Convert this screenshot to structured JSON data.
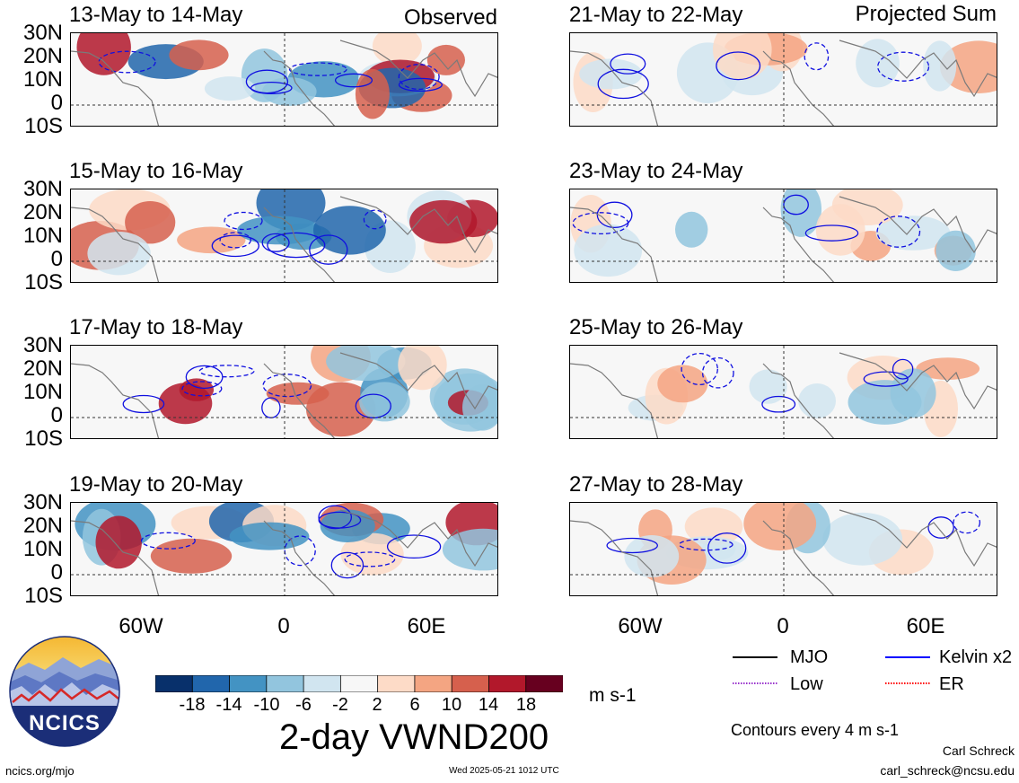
{
  "panels": {
    "observed_tag": "Observed",
    "projected_tag": "Projected Sum",
    "left_titles": [
      "13-May to 14-May",
      "15-May to 16-May",
      "17-May to 18-May",
      "19-May to 20-May"
    ],
    "right_titles": [
      "21-May to 22-May",
      "23-May to 24-May",
      "25-May to 26-May",
      "27-May to 28-May"
    ],
    "lat_labels": [
      "30N",
      "20N",
      "10N",
      "0",
      "10S"
    ],
    "lon_labels": [
      "60W",
      "0",
      "60E"
    ]
  },
  "colorbar": {
    "colors": [
      "#08306b",
      "#2166ac",
      "#4393c3",
      "#92c5de",
      "#d1e5f0",
      "#f7f7f7",
      "#fddbc7",
      "#f4a582",
      "#d6604d",
      "#b2182b",
      "#67001f"
    ],
    "ticks": [
      "-18",
      "-14",
      "-10",
      "-6",
      "-2",
      "2",
      "6",
      "10",
      "14",
      "18"
    ],
    "units": "m s-1",
    "title": "2-day VWND200"
  },
  "legend": {
    "items": [
      {
        "label": "MJO",
        "color": "#000000",
        "style": "solid"
      },
      {
        "label": "Kelvin x2",
        "color": "#0000ff",
        "style": "solid"
      },
      {
        "label": "Low",
        "color": "#9933cc",
        "style": "dotted"
      },
      {
        "label": "ER",
        "color": "#ff0000",
        "style": "dotted"
      }
    ],
    "contour_note": "Contours every 4 m s-1"
  },
  "footer": {
    "logo_text": "NCICS",
    "site": "ncics.org/mjo",
    "timestamp": "Wed 2025-05-21 1012 UTC",
    "author": "Carl Schreck",
    "email": "carl_schreck@ncsu.edu"
  }
}
